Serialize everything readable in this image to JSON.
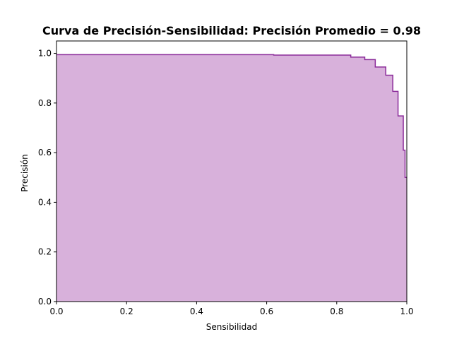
{
  "chart_data": {
    "type": "area",
    "title": "Curva de Precisión-Sensibilidad: Precisión Promedio = 0.98",
    "xlabel": "Sensibilidad",
    "ylabel": "Precisión",
    "xlim": [
      0.0,
      1.0
    ],
    "ylim": [
      0.0,
      1.05
    ],
    "xticks": [
      "0.0",
      "0.2",
      "0.4",
      "0.6",
      "0.8",
      "1.0"
    ],
    "yticks": [
      "0.0",
      "0.2",
      "0.4",
      "0.6",
      "0.8",
      "1.0"
    ],
    "grid": false,
    "step": "post",
    "colors": {
      "line": "#8b2c9a",
      "fill": "#d8b1db",
      "frame": "#000000"
    },
    "series": [
      {
        "x": [
          0.0,
          0.62,
          0.84,
          0.88,
          0.91,
          0.94,
          0.96,
          0.975,
          0.99,
          0.995,
          1.0
        ],
        "y": [
          0.995,
          0.993,
          0.985,
          0.975,
          0.945,
          0.912,
          0.847,
          0.748,
          0.61,
          0.5,
          0.5
        ]
      }
    ]
  }
}
